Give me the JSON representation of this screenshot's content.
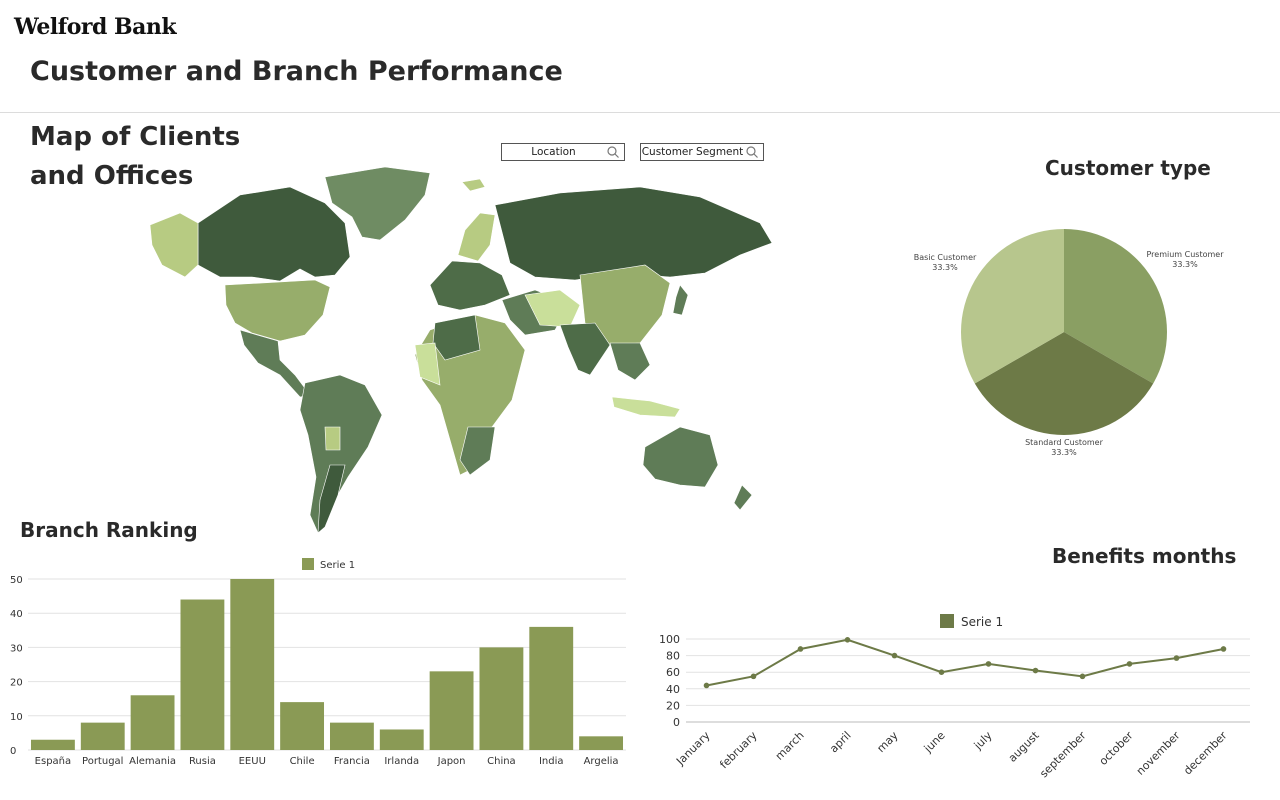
{
  "brand": "Welford Bank",
  "page_title": "Customer and Branch Performance",
  "map": {
    "title": "Map of Clients and Offices",
    "filters": [
      {
        "label": "Location",
        "icon": "search-icon"
      },
      {
        "label": "Customer Segment",
        "icon": "search-icon"
      }
    ],
    "palette": [
      "#3f5a3c",
      "#4e6c48",
      "#5f7c57",
      "#6f8c63",
      "#97ad6b",
      "#b7cb82",
      "#c9df9a"
    ]
  },
  "pie": {
    "title": "Customer type",
    "chart_data": {
      "type": "pie",
      "slices": [
        {
          "label": "Premium Customer",
          "value": 33.3,
          "display": "33.3%",
          "color": "#8a9f63"
        },
        {
          "label": "Standard Customer",
          "value": 33.3,
          "display": "33.3%",
          "color": "#6d7a47"
        },
        {
          "label": "Basic Customer",
          "value": 33.3,
          "display": "33.3%",
          "color": "#b7c68d"
        }
      ]
    }
  },
  "branch": {
    "title": "Branch Ranking",
    "chart_data": {
      "type": "bar",
      "categories": [
        "España",
        "Portugal",
        "Alemania",
        "Rusia",
        "EEUU",
        "Chile",
        "Francia",
        "Irlanda",
        "Japon",
        "China",
        "India",
        "Argelia"
      ],
      "series": [
        {
          "name": "Serie 1",
          "values": [
            3,
            8,
            16,
            44,
            50,
            14,
            8,
            6,
            23,
            30,
            36,
            4
          ],
          "color": "#8a9a55"
        }
      ],
      "yticks": [
        0,
        10,
        20,
        30,
        40,
        50
      ],
      "ylim": [
        0,
        50
      ],
      "legend": "top-center",
      "grid": true
    }
  },
  "benefits": {
    "title": "Benefits months",
    "chart_data": {
      "type": "line",
      "x": [
        "January",
        "february",
        "march",
        "april",
        "may",
        "june",
        "july",
        "august",
        "september",
        "october",
        "november",
        "december"
      ],
      "series": [
        {
          "name": "Serie 1",
          "values": [
            44,
            55,
            88,
            99,
            80,
            60,
            70,
            62,
            55,
            70,
            77,
            88
          ],
          "color": "#6d7a47"
        }
      ],
      "yticks": [
        0,
        20,
        40,
        60,
        80,
        100
      ],
      "ylim": [
        0,
        100
      ],
      "legend": "top-center",
      "grid": true
    }
  }
}
